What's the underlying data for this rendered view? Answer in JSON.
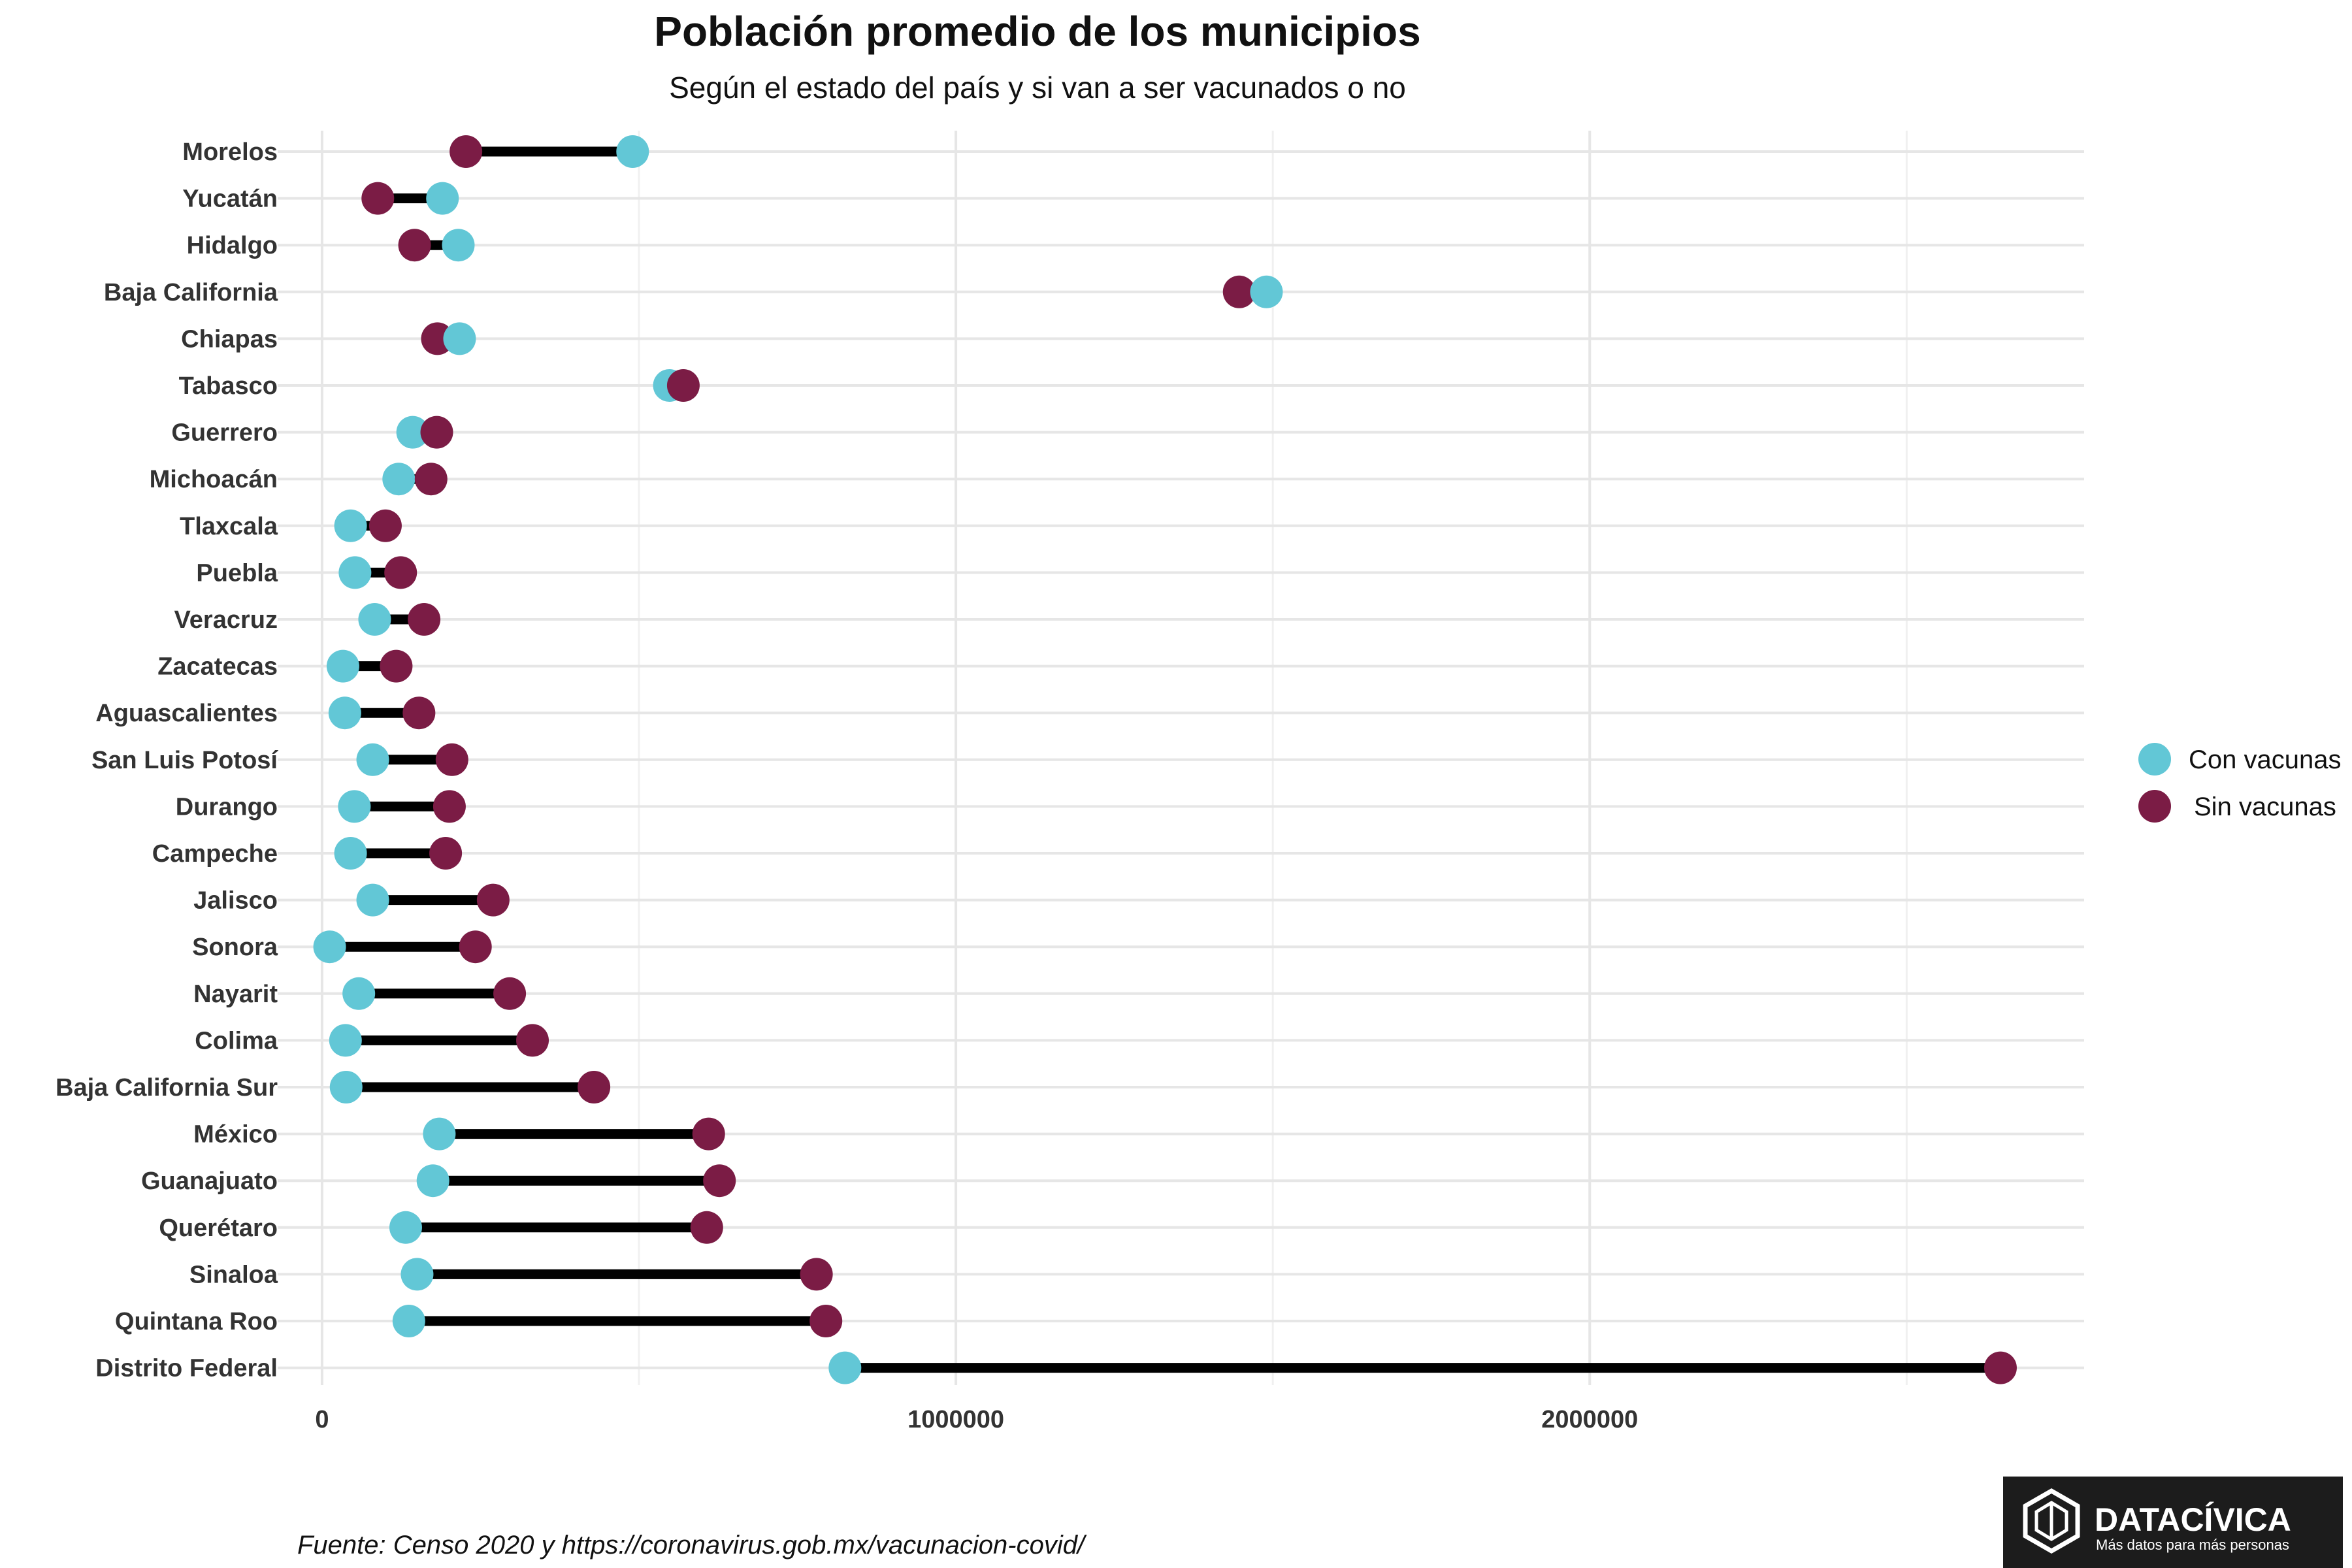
{
  "header": {
    "title": "Población promedio de los municipios",
    "subtitle": "Según el estado del país y si van a ser vacunados o no"
  },
  "footer": {
    "source": "Fuente: Censo 2020 y https://coronavirus.gob.mx/vacunacion-covid/"
  },
  "logo": {
    "name": "DATACÍVICA",
    "tagline": "Más datos para más personas"
  },
  "colors": {
    "con": "#62c7d6",
    "sin": "#7b1c45",
    "segment": "#000000",
    "grid": "#e6e6e6"
  },
  "chart_data": {
    "type": "dumbbell",
    "title": "Población promedio de los municipios",
    "subtitle": "Según el estado del país y si van a ser vacunados o no",
    "xlabel": "",
    "ylabel": "",
    "xlim": [
      -70000,
      2780000
    ],
    "xticks": [
      0,
      1000000,
      2000000
    ],
    "xtick_labels": [
      "0",
      "1000000",
      "2000000"
    ],
    "grid": true,
    "legend_position": "right",
    "categories": [
      "Morelos",
      "Yucatán",
      "Hidalgo",
      "Baja California",
      "Chiapas",
      "Tabasco",
      "Guerrero",
      "Michoacán",
      "Tlaxcala",
      "Puebla",
      "Veracruz",
      "Zacatecas",
      "Aguascalientes",
      "San Luis Potosí",
      "Durango",
      "Campeche",
      "Jalisco",
      "Sonora",
      "Nayarit",
      "Colima",
      "Baja California Sur",
      "México",
      "Guanajuato",
      "Querétaro",
      "Sinaloa",
      "Quintana Roo",
      "Distrito Federal"
    ],
    "series": [
      {
        "name": "Con vacunas",
        "values": [
          490000,
          190000,
          215000,
          1490000,
          217000,
          548000,
          143000,
          121000,
          45000,
          52000,
          83000,
          33000,
          36000,
          80000,
          51000,
          45000,
          80000,
          12000,
          58000,
          37000,
          38000,
          185000,
          175000,
          132000,
          150000,
          137000,
          825000
        ]
      },
      {
        "name": "Sin vacunas",
        "values": [
          227000,
          88000,
          146000,
          1447000,
          182000,
          570000,
          181000,
          172000,
          100000,
          124000,
          161000,
          117000,
          153000,
          205000,
          201000,
          195000,
          270000,
          242000,
          296000,
          332000,
          429000,
          610000,
          627000,
          607000,
          780000,
          795000,
          2648000
        ]
      }
    ]
  }
}
